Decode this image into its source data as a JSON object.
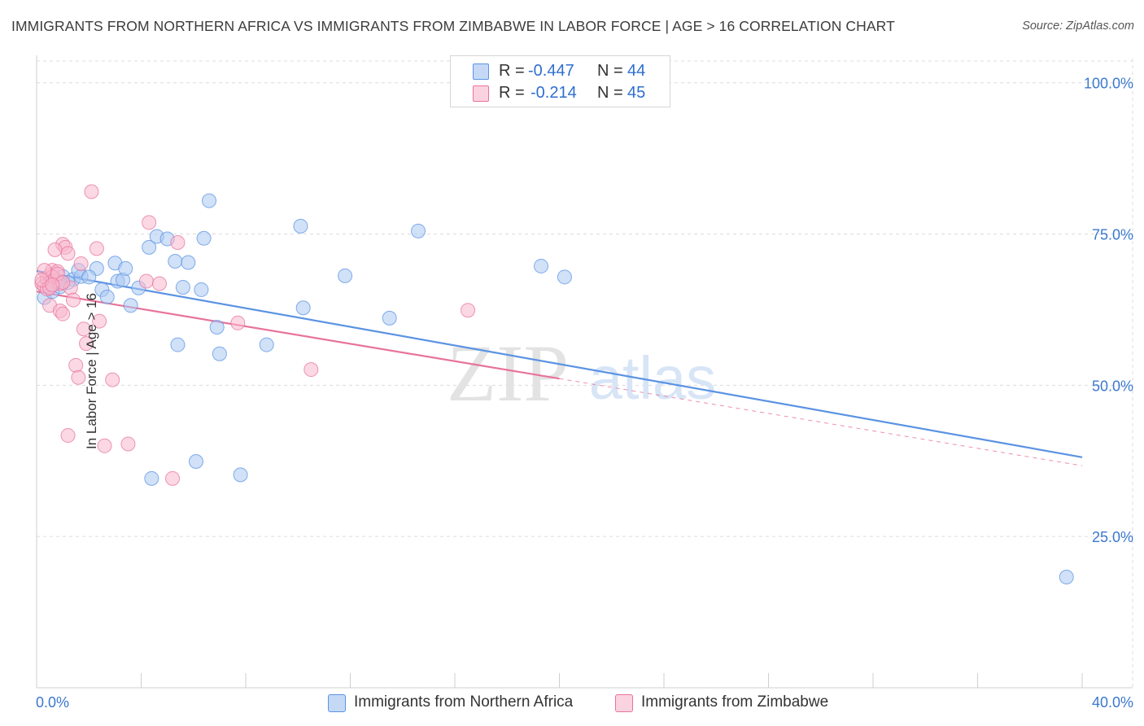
{
  "title": "IMMIGRANTS FROM NORTHERN AFRICA VS IMMIGRANTS FROM ZIMBABWE IN LABOR FORCE | AGE > 16 CORRELATION CHART",
  "source": "Source: ZipAtlas.com",
  "watermark": {
    "zip": "ZIP",
    "atlas": "atlas"
  },
  "legend": {
    "rows": [
      {
        "r_label": "R =",
        "r_value": "-0.447",
        "n_label": "N =",
        "n_value": "44",
        "color": "#a9c8f3"
      },
      {
        "r_label": "R =",
        "r_value": "-0.214",
        "n_label": "N =",
        "n_value": "45",
        "color": "#f7b8cd"
      }
    ]
  },
  "bottom_legend": [
    {
      "label": "Immigrants from Northern Africa",
      "color": "#a9c8f3"
    },
    {
      "label": "Immigrants from Zimbabwe",
      "color": "#f7b8cd"
    }
  ],
  "chart_data": {
    "type": "scatter",
    "title": "IMMIGRANTS FROM NORTHERN AFRICA VS IMMIGRANTS FROM ZIMBABWE IN LABOR FORCE | AGE > 16 CORRELATION CHART",
    "xlabel": "",
    "ylabel": "In Labor Force | Age > 16",
    "xlim": [
      0,
      40
    ],
    "ylim": [
      0,
      104
    ],
    "x_tick_labels": [
      "0.0%",
      "40.0%"
    ],
    "y_tick_labels": [
      "25.0%",
      "50.0%",
      "75.0%",
      "100.0%"
    ],
    "y_tick_values": [
      25,
      50,
      75,
      100
    ],
    "grid": true,
    "legend_position": "top-center",
    "series": [
      {
        "name": "Immigrants from Northern Africa",
        "color": "#5b93e3",
        "fill": "#a9c8f3",
        "points": [
          [
            0.3,
            64.5
          ],
          [
            0.5,
            66.8
          ],
          [
            0.8,
            67.2
          ],
          [
            1.0,
            68.0
          ],
          [
            1.4,
            67.5
          ],
          [
            1.7,
            68.0
          ],
          [
            2.3,
            69.3
          ],
          [
            1.6,
            69.0
          ],
          [
            2.5,
            65.8
          ],
          [
            2.7,
            64.6
          ],
          [
            3.0,
            70.2
          ],
          [
            3.1,
            67.2
          ],
          [
            3.3,
            67.4
          ],
          [
            3.4,
            69.3
          ],
          [
            3.6,
            63.2
          ],
          [
            3.9,
            66.1
          ],
          [
            4.3,
            72.8
          ],
          [
            4.6,
            74.6
          ],
          [
            5.0,
            74.2
          ],
          [
            5.3,
            70.5
          ],
          [
            5.4,
            56.7
          ],
          [
            5.6,
            66.2
          ],
          [
            5.8,
            70.3
          ],
          [
            6.1,
            37.4
          ],
          [
            6.3,
            65.8
          ],
          [
            6.4,
            74.3
          ],
          [
            6.6,
            80.5
          ],
          [
            6.9,
            59.6
          ],
          [
            7.0,
            55.2
          ],
          [
            7.8,
            35.2
          ],
          [
            4.4,
            34.6
          ],
          [
            8.8,
            56.7
          ],
          [
            10.1,
            76.3
          ],
          [
            10.2,
            62.8
          ],
          [
            11.8,
            68.1
          ],
          [
            13.5,
            61.1
          ],
          [
            14.6,
            75.5
          ],
          [
            19.3,
            69.7
          ],
          [
            20.2,
            67.9
          ],
          [
            39.4,
            18.3
          ],
          [
            0.6,
            65.5
          ],
          [
            1.2,
            67.0
          ],
          [
            2.0,
            67.9
          ],
          [
            0.9,
            66.3
          ]
        ],
        "trend": {
          "x": [
            0,
            40
          ],
          "y": [
            68.9,
            38.1
          ]
        }
      },
      {
        "name": "Immigrants from Zimbabwe",
        "color": "#e8739b",
        "fill": "#f7b8cd",
        "points": [
          [
            0.2,
            66.8
          ],
          [
            0.3,
            66.4
          ],
          [
            0.4,
            67.6
          ],
          [
            0.5,
            68.2
          ],
          [
            0.6,
            69.0
          ],
          [
            0.7,
            67.3
          ],
          [
            0.8,
            68.8
          ],
          [
            0.9,
            66.8
          ],
          [
            1.0,
            73.3
          ],
          [
            1.1,
            72.8
          ],
          [
            0.7,
            72.4
          ],
          [
            1.2,
            71.8
          ],
          [
            1.3,
            66.1
          ],
          [
            1.4,
            64.1
          ],
          [
            0.5,
            63.2
          ],
          [
            0.9,
            62.3
          ],
          [
            1.0,
            61.8
          ],
          [
            1.7,
            70.1
          ],
          [
            1.8,
            59.3
          ],
          [
            1.9,
            56.9
          ],
          [
            2.1,
            82.0
          ],
          [
            2.3,
            72.6
          ],
          [
            2.4,
            60.6
          ],
          [
            1.5,
            53.3
          ],
          [
            1.6,
            51.3
          ],
          [
            2.9,
            50.9
          ],
          [
            1.2,
            41.7
          ],
          [
            2.6,
            40.0
          ],
          [
            3.5,
            40.3
          ],
          [
            4.2,
            67.2
          ],
          [
            4.3,
            76.9
          ],
          [
            4.7,
            66.8
          ],
          [
            5.2,
            34.6
          ],
          [
            5.4,
            73.6
          ],
          [
            7.7,
            60.3
          ],
          [
            10.5,
            52.6
          ],
          [
            16.5,
            62.4
          ],
          [
            0.4,
            65.9
          ],
          [
            0.6,
            67.9
          ],
          [
            0.3,
            69.0
          ],
          [
            0.8,
            68.4
          ],
          [
            0.5,
            66.1
          ],
          [
            0.2,
            67.4
          ],
          [
            1.0,
            67.0
          ],
          [
            0.6,
            66.6
          ]
        ],
        "trend": {
          "x": [
            0,
            20
          ],
          "y": [
            65.5,
            51.1
          ]
        },
        "trend_extension": {
          "x": [
            20,
            40
          ],
          "y": [
            51.1,
            36.7
          ]
        }
      }
    ]
  }
}
